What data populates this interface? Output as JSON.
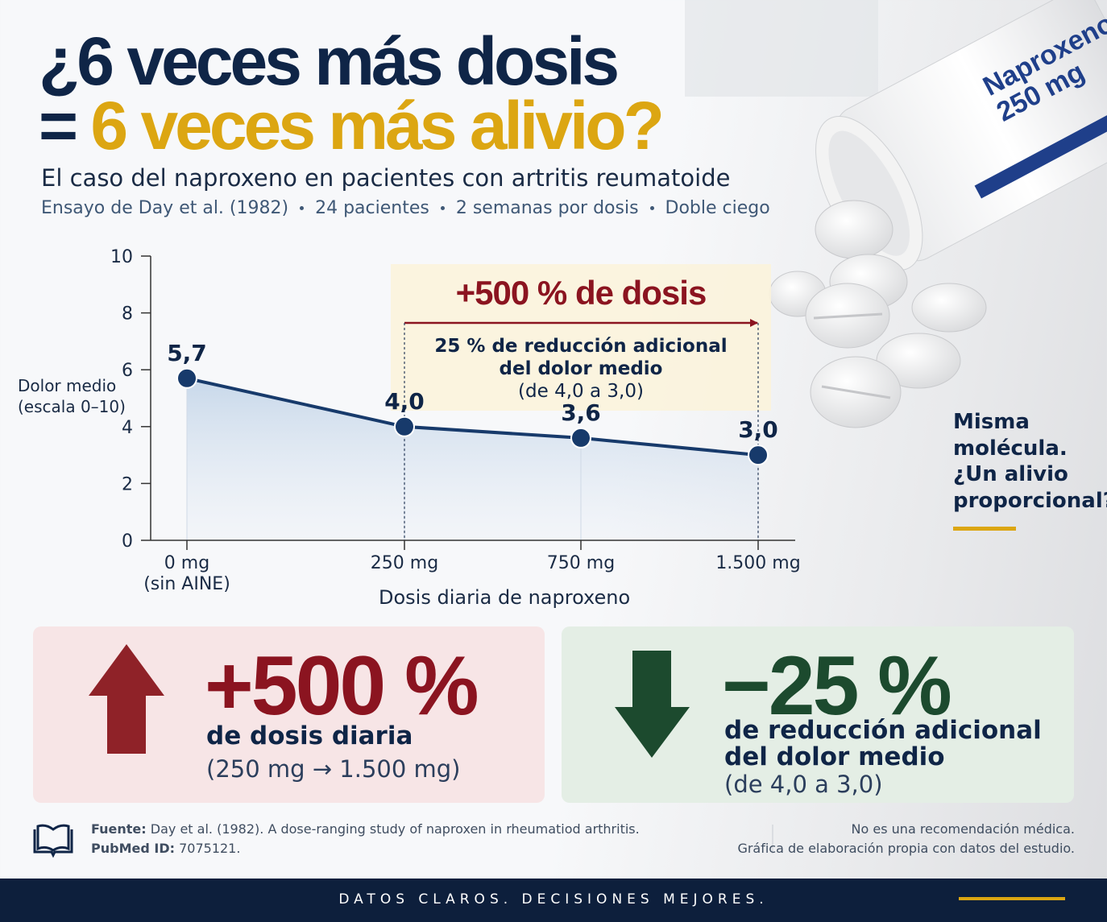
{
  "header": {
    "title_line1": "¿6 veces más dosis",
    "title_line2_prefix": "=",
    "title_line2": "6 veces más alivio?",
    "subtitle": "El caso del naproxeno en pacientes con artritis reumatoide",
    "meta": [
      "Ensayo de Day et al. (1982)",
      "24 pacientes",
      "2 semanas por dosis",
      "Doble ciego"
    ]
  },
  "bottle_label": [
    "Naproxeno",
    "250 mg"
  ],
  "chart_data": {
    "type": "line",
    "categories": [
      "0 mg\n(sin AINE)",
      "250 mg",
      "750 mg",
      "1.500 mg"
    ],
    "values": [
      5.7,
      4.0,
      3.6,
      3.0
    ],
    "value_labels": [
      "5,7",
      "4,0",
      "3,6",
      "3,0"
    ],
    "color": "#173a6b",
    "ylim": [
      0,
      10
    ],
    "yticks": [
      0,
      2,
      4,
      6,
      8,
      10
    ],
    "y_label": "Dolor medio\n(escala 0–10)",
    "x_label": "Dosis diaria de naproxeno",
    "annotation": {
      "title": "+500 % de dosis",
      "text": "25 % de reducción adicional\ndel dolor medio",
      "note": "(de 4,0 a 3,0)"
    }
  },
  "side_note": "Misma\nmolécula.\n¿Un alivio\nproporcional?",
  "cards": [
    {
      "big": "+500 %",
      "text": "de dosis diaria",
      "note": "(250 mg → 1.500 mg)"
    },
    {
      "big": "−25 %",
      "text": "de reducción adicional\ndel dolor medio",
      "note": "(de 4,0 a 3,0)"
    }
  ],
  "footer": {
    "source_label": "Fuente:",
    "source": "Day et al. (1982). A dose-ranging study of naproxen in rheumatiod arthritis.",
    "pubmed_label": "PubMed ID:",
    "pubmed": "7075121.",
    "disclaimer": "No es una recomendación médica.",
    "credit": "Gráfica de elaboración propia con datos del estudio."
  },
  "tagline": "DATOS CLAROS. DECISIONES MEJORES."
}
